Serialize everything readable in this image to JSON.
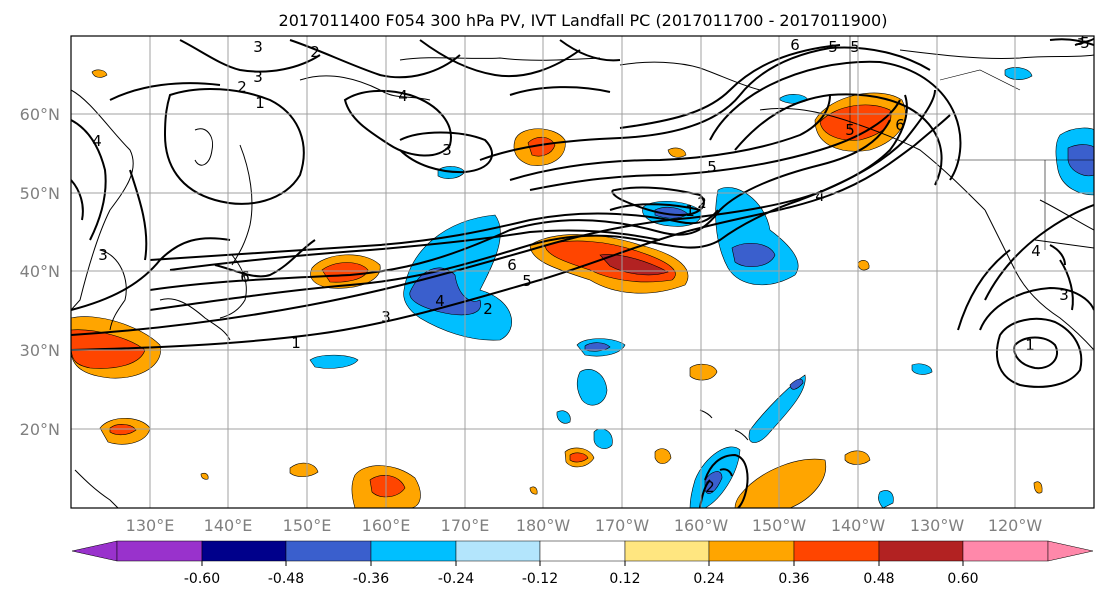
{
  "title": "2017011400 F054 300 hPa PV, IVT Landfall PC (2017011700 - 2017011900)",
  "lat_labels": [
    "60°N",
    "50°N",
    "40°N",
    "30°N",
    "20°N"
  ],
  "lon_labels": [
    "130°E",
    "140°E",
    "150°E",
    "160°E",
    "170°E",
    "180°W",
    "170°W",
    "160°W",
    "150°W",
    "140°W",
    "130°W",
    "120°W"
  ],
  "colorbar": {
    "tick_labels": [
      "-0.60",
      "-0.48",
      "-0.36",
      "-0.24",
      "-0.12",
      "0.12",
      "0.24",
      "0.36",
      "0.48",
      "0.60"
    ],
    "colors": [
      "#9932cc",
      "#00008b",
      "#3a5fcd",
      "#00bfff",
      "#b3e5fc",
      "#ffffff",
      "#ffe680",
      "#ffa500",
      "#ff4500",
      "#b22222",
      "#ff88aa"
    ]
  },
  "contour_labels": [
    "3",
    "2",
    "3",
    "2",
    "1",
    "4",
    "4",
    "3",
    "3",
    "6",
    "6",
    "5",
    "4",
    "2",
    "3",
    "1",
    "6",
    "5",
    "4",
    "2",
    "5",
    "4",
    "1",
    "3",
    "2",
    "3",
    "1",
    "5",
    "5",
    "6",
    "5"
  ]
}
